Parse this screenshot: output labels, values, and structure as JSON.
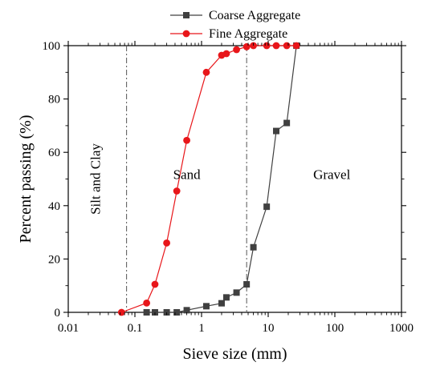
{
  "chart_data": {
    "type": "line",
    "xlabel": "Sieve size (mm)",
    "ylabel": "Percent passing (%)",
    "x_scale": "log",
    "xlim": [
      0.01,
      1000
    ],
    "ylim": [
      0,
      100
    ],
    "x_ticks": [
      0.01,
      0.1,
      1,
      10,
      100,
      1000
    ],
    "x_tick_labels": [
      "0.01",
      "0.1",
      "1",
      "10",
      "100",
      "1000"
    ],
    "y_ticks": [
      0,
      20,
      40,
      60,
      80,
      100
    ],
    "y_tick_labels": [
      "0",
      "20",
      "40",
      "60",
      "80",
      "100"
    ],
    "grid": false,
    "legend_position": "top-center",
    "series": [
      {
        "name": "Coarse Aggregate",
        "color": "#404040",
        "marker": "square",
        "x": [
          0.15,
          0.2,
          0.3,
          0.425,
          0.6,
          1.18,
          2,
          2.36,
          3.35,
          4.75,
          6,
          9.5,
          13.2,
          19,
          26.5
        ],
        "y": [
          0,
          0,
          0,
          0,
          0.8,
          2.3,
          3.4,
          5.6,
          7.4,
          10.5,
          24.4,
          39.6,
          68,
          71,
          100
        ]
      },
      {
        "name": "Fine Aggregate",
        "color": "#e8161a",
        "marker": "circle",
        "x": [
          0.063,
          0.15,
          0.2,
          0.3,
          0.425,
          0.6,
          1.18,
          2,
          2.36,
          3.35,
          4.75,
          6,
          9.5,
          13.2,
          19,
          26.5
        ],
        "y": [
          0,
          3.5,
          10.5,
          26,
          45.5,
          64.5,
          90,
          96.4,
          97,
          98.5,
          99.6,
          100,
          100,
          100,
          100,
          100
        ]
      }
    ],
    "reference_lines": [
      {
        "axis": "x",
        "value": 0.075
      },
      {
        "axis": "x",
        "value": 4.75
      }
    ],
    "annotations": [
      {
        "text": "Silt and Clay",
        "x": 0.03,
        "y": 50,
        "rotation": -90
      },
      {
        "text": "Sand",
        "x": 0.6,
        "y": 50
      },
      {
        "text": "Gravel",
        "x": 90,
        "y": 50
      }
    ]
  }
}
